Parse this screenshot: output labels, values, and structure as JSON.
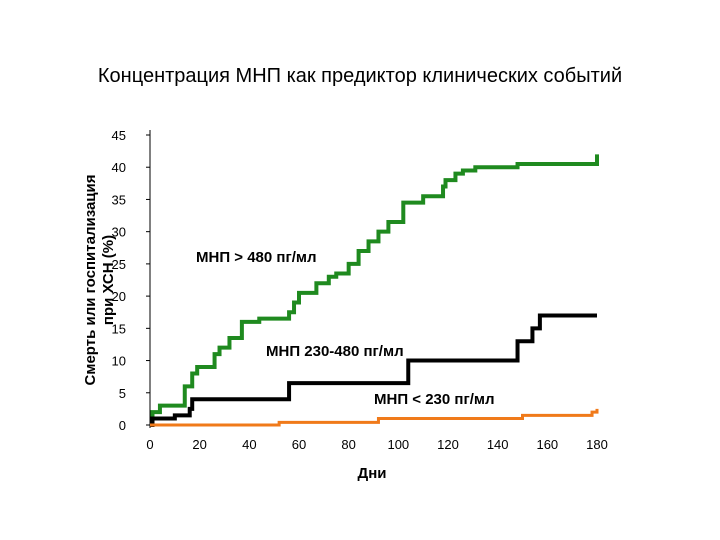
{
  "chart_data": {
    "type": "line",
    "step": true,
    "title": "Концентрация МНП как предиктор клинических событий",
    "xlabel": "Дни",
    "ylabel": [
      "Смерть или госпитализация",
      "при ХСН (%)"
    ],
    "xlim": [
      0,
      180
    ],
    "ylim": [
      0,
      45
    ],
    "x_ticks": [
      0,
      20,
      40,
      60,
      80,
      100,
      120,
      140,
      160,
      180
    ],
    "y_ticks": [
      0,
      5,
      10,
      15,
      20,
      25,
      30,
      35,
      40,
      45
    ],
    "grid": false,
    "legend": "none",
    "series": [
      {
        "name": "МНП > 480 пг/мл",
        "color": "#1f8a1f",
        "x": [
          0,
          1,
          4,
          14,
          17,
          19,
          26,
          28,
          32,
          37,
          44,
          56,
          58,
          60,
          67,
          72,
          75,
          80,
          84,
          88,
          92,
          96,
          102,
          110,
          118,
          119,
          123,
          126,
          131,
          148,
          180,
          180
        ],
        "y": [
          0,
          2,
          3,
          6,
          8,
          9,
          11,
          12,
          13.5,
          16,
          16.5,
          17.5,
          19,
          20.5,
          22,
          23,
          23.5,
          25,
          27,
          28.5,
          30,
          31.5,
          34.5,
          35.5,
          37,
          38,
          39,
          39.5,
          40,
          40.5,
          40.5,
          42
        ]
      },
      {
        "name": "МНП 230-480 пг/мл",
        "color": "#000000",
        "x": [
          0,
          1,
          10,
          16,
          17,
          56,
          84,
          104,
          148,
          154,
          157,
          180
        ],
        "y": [
          0,
          1,
          1.5,
          2.5,
          4,
          6.5,
          6.5,
          10,
          13,
          15,
          17,
          17
        ]
      },
      {
        "name": "МНП < 230 пг/мл",
        "color": "#f07a1a",
        "x": [
          0,
          52,
          92,
          150,
          178,
          180
        ],
        "y": [
          0,
          0.4,
          1,
          1.5,
          2,
          2.5
        ]
      }
    ],
    "annotations": [
      "МНП > 480 пг/мл",
      "МНП 230-480 пг/мл",
      "МНП < 230 пг/мл"
    ]
  }
}
